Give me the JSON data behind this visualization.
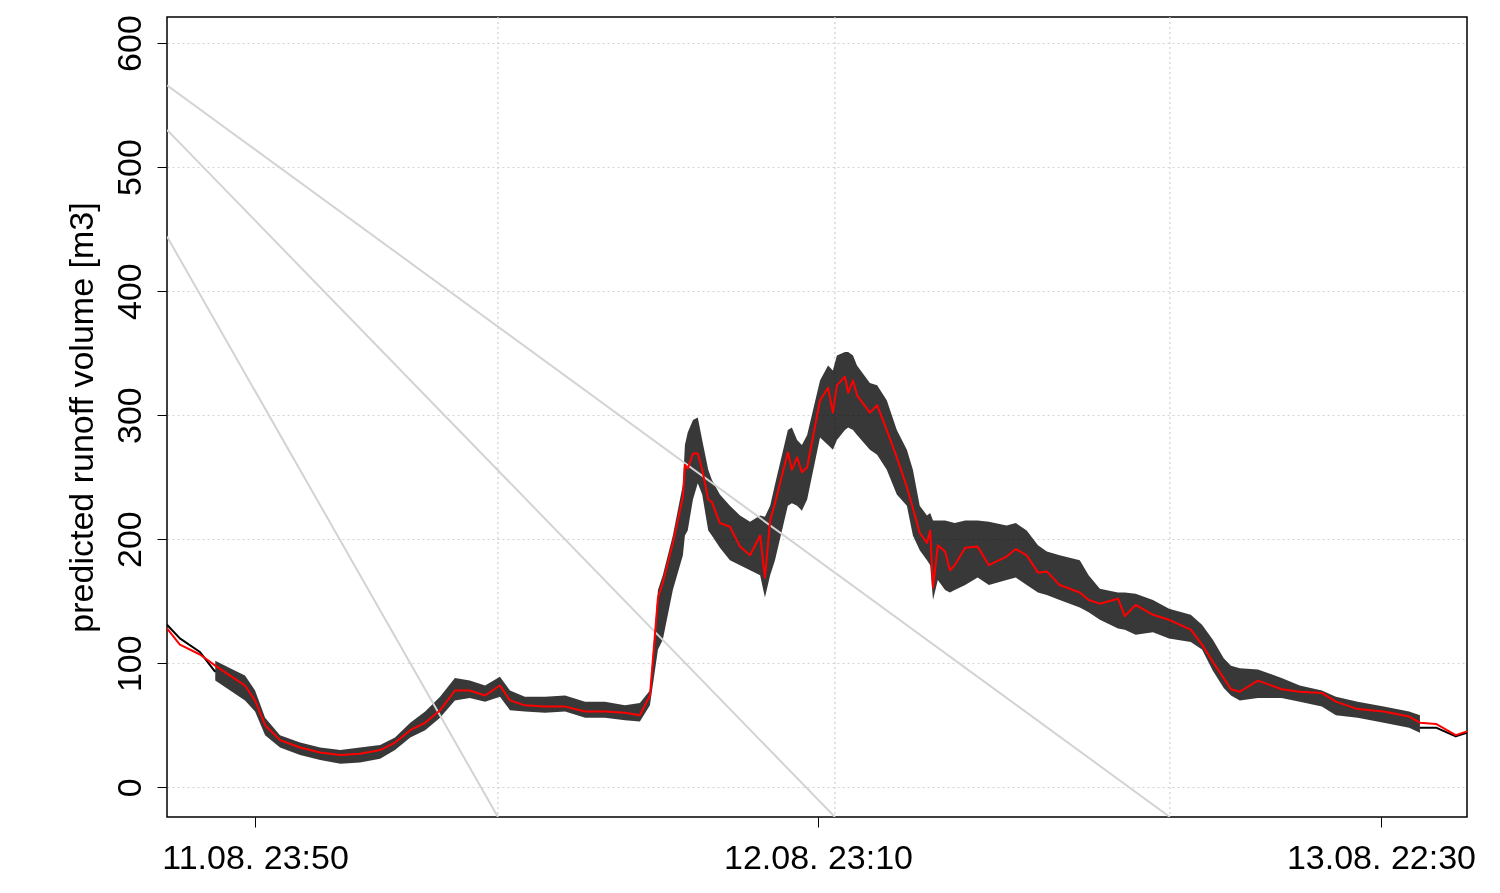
{
  "chart_data": {
    "type": "line",
    "ylabel": "predicted runoff volume [m3]",
    "x": [
      "--08-11T20:11",
      "--08-11T20:43",
      "--08-11T21:33",
      "--08-11T22:11",
      "--08-11T22:48",
      "--08-11T23:25",
      "--08-11T23:50",
      "--08-12T00:15",
      "--08-12T00:52",
      "--08-12T01:42",
      "--08-12T02:32",
      "--08-12T03:22",
      "--08-12T04:11",
      "--08-12T05:01",
      "--08-12T05:38",
      "--08-12T06:16",
      "--08-12T06:53",
      "--08-12T07:30",
      "--08-12T08:07",
      "--08-12T08:44",
      "--08-12T09:22",
      "--08-12T09:59",
      "--08-12T10:24",
      "--08-12T11:01",
      "--08-12T11:51",
      "--08-12T12:41",
      "--08-12T13:31",
      "--08-12T14:20",
      "--08-12T15:10",
      "--08-12T15:47",
      "--08-12T16:12",
      "--08-12T16:32",
      "--08-12T16:44",
      "--08-12T17:09",
      "--08-12T17:34",
      "--08-12T17:39",
      "--08-12T17:46",
      "--08-12T17:59",
      "--08-12T18:11",
      "--08-12T18:22",
      "--08-12T18:37",
      "--08-12T18:46",
      "--08-12T19:06",
      "--08-12T19:31",
      "--08-12T19:56",
      "--08-12T20:21",
      "--08-12T20:46",
      "--08-12T20:58",
      "--08-12T21:11",
      "--08-12T21:23",
      "--08-12T21:55",
      "--08-12T22:05",
      "--08-12T22:18",
      "--08-12T22:30",
      "--08-12T22:43",
      "--08-12T23:15",
      "--08-12T23:35",
      "--08-12T23:47",
      "--08-12T23:57",
      "--08-13T00:17",
      "--08-13T00:25",
      "--08-13T00:37",
      "--08-13T00:47",
      "--08-13T01:19",
      "--08-13T01:37",
      "--08-13T02:01",
      "--08-13T02:26",
      "--08-13T02:51",
      "--08-13T03:06",
      "--08-13T03:23",
      "--08-13T03:41",
      "--08-13T03:49",
      "--08-13T03:56",
      "--08-13T04:08",
      "--08-13T04:26",
      "--08-13T04:38",
      "--08-13T04:50",
      "--08-13T05:16",
      "--08-13T05:47",
      "--08-13T06:15",
      "--08-13T06:59",
      "--08-13T07:22",
      "--08-13T07:49",
      "--08-13T08:17",
      "--08-13T08:39",
      "--08-13T09:11",
      "--08-13T10:01",
      "--08-13T10:23",
      "--08-13T10:51",
      "--08-13T11:36",
      "--08-13T11:53",
      "--08-13T12:20",
      "--08-13T13:03",
      "--08-13T13:43",
      "--08-13T14:37",
      "--08-13T15:05",
      "--08-13T15:32",
      "--08-13T15:59",
      "--08-13T16:17",
      "--08-13T16:39",
      "--08-13T17:24",
      "--08-13T18:23",
      "--08-13T19:08",
      "--08-13T20:03",
      "--08-13T20:38",
      "--08-13T21:32",
      "--08-13T22:37",
      "--08-13T23:40",
      "--08-14T00:07",
      "--08-14T00:47",
      "--08-14T01:36",
      "--08-14T02:04"
    ],
    "series": [
      {
        "type": "line",
        "color": "#d3d3d3",
        "x": [
          "--08-11T20:11",
          "--08-13T13:45"
        ],
        "values": [
          566,
          -24
        ]
      },
      {
        "type": "line",
        "color": "#d3d3d3",
        "x": [
          "--08-11T20:11",
          "--08-12T23:52"
        ],
        "values": [
          530,
          -24
        ]
      },
      {
        "type": "line",
        "color": "#d3d3d3",
        "x": [
          "--08-11T20:11",
          "--08-12T09:54"
        ],
        "values": [
          444,
          -24
        ]
      },
      {
        "type": "line",
        "color": "#000000",
        "values": [
          131,
          120,
          109,
          93,
          null,
          null,
          null,
          null,
          null,
          null,
          null,
          null,
          null,
          null,
          null,
          null,
          null,
          null,
          null,
          null,
          null,
          null,
          null,
          null,
          null,
          null,
          null,
          null,
          null,
          null,
          null,
          null,
          null,
          null,
          null,
          null,
          null,
          null,
          null,
          null,
          null,
          null,
          null,
          null,
          null,
          null,
          null,
          null,
          null,
          null,
          null,
          null,
          null,
          null,
          null,
          null,
          null,
          null,
          null,
          null,
          null,
          null,
          null,
          null,
          null,
          null,
          null,
          null,
          null,
          null,
          null,
          null,
          null,
          null,
          null,
          null,
          null,
          null,
          null,
          null,
          null,
          null,
          null,
          null,
          null,
          null,
          null,
          null,
          null,
          null,
          null,
          null,
          null,
          null,
          null,
          null,
          null,
          null,
          null,
          null,
          null,
          null,
          null,
          null,
          null,
          null,
          null,
          null,
          48,
          48,
          41,
          44
        ],
        "lower": [
          null,
          null,
          null,
          86,
          78,
          70,
          61,
          42,
          32,
          26,
          22,
          19,
          20,
          23,
          30,
          40,
          46,
          56,
          70,
          72,
          69,
          73,
          62,
          61,
          60,
          61,
          56,
          56,
          54,
          53,
          66,
          111,
          119,
          159,
          187,
          203,
          207,
          232,
          245,
          236,
          207,
          203,
          193,
          183,
          179,
          175,
          171,
          153,
          171,
          183,
          227,
          229,
          227,
          223,
          232,
          282,
          276,
          272,
          280,
          288,
          290,
          288,
          284,
          272,
          268,
          256,
          236,
          227,
          203,
          191,
          183,
          179,
          151,
          167,
          159,
          157,
          159,
          163,
          169,
          163,
          167,
          169,
          163,
          157,
          155,
          151,
          145,
          141,
          135,
          128,
          127,
          123,
          125,
          120,
          117,
          111,
          94,
          80,
          74,
          70,
          72,
          72,
          69,
          65,
          58,
          56,
          52,
          48,
          44,
          null,
          null,
          null
        ],
        "upper": [
          null,
          null,
          null,
          102,
          96,
          90,
          78,
          56,
          42,
          36,
          32,
          30,
          32,
          34,
          40,
          52,
          61,
          73,
          88,
          86,
          82,
          89,
          78,
          73,
          73,
          74,
          69,
          69,
          66,
          68,
          78,
          159,
          171,
          203,
          244,
          276,
          286,
          296,
          298,
          280,
          256,
          248,
          236,
          227,
          219,
          214,
          219,
          218,
          227,
          244,
          288,
          290,
          280,
          276,
          284,
          328,
          340,
          336,
          348,
          351,
          351,
          348,
          340,
          326,
          324,
          312,
          288,
          272,
          256,
          227,
          219,
          221,
          215,
          215,
          215,
          214,
          213,
          215,
          215,
          214,
          211,
          213,
          207,
          195,
          190,
          187,
          183,
          171,
          160,
          157,
          157,
          156,
          151,
          144,
          139,
          131,
          119,
          104,
          98,
          96,
          95,
          88,
          82,
          78,
          73,
          69,
          65,
          61,
          58,
          null,
          null,
          null
        ]
      },
      {
        "type": "line",
        "color": "#ff0000",
        "values": [
          128,
          115,
          107,
          98,
          90,
          82,
          70,
          50,
          38,
          32,
          28,
          26,
          27,
          30,
          36,
          46,
          52,
          62,
          78,
          78,
          74,
          82,
          70,
          66,
          65,
          65,
          61,
          61,
          60,
          58,
          74,
          153,
          165,
          197,
          234,
          260,
          257,
          269,
          269,
          256,
          232,
          230,
          213,
          210,
          194,
          187,
          203,
          169,
          215,
          229,
          270,
          256,
          266,
          254,
          258,
          312,
          322,
          302,
          324,
          331,
          318,
          328,
          316,
          302,
          308,
          288,
          266,
          242,
          225,
          205,
          197,
          207,
          161,
          195,
          190,
          175,
          179,
          193,
          194,
          179,
          186,
          192,
          187,
          173,
          174,
          163,
          157,
          151,
          148,
          152,
          138,
          147,
          139,
          135,
          127,
          115,
          101,
          88,
          79,
          77,
          86,
          79,
          77,
          76,
          69,
          63,
          61,
          57,
          52,
          51,
          42,
          45
        ]
      }
    ],
    "xlim": [
      "--08-11T20:11",
      "--08-14T02:04"
    ],
    "ylim": [
      -24,
      621
    ],
    "xticks": [
      {
        "value": "--08-11T23:50",
        "label": "11.08. 23:50"
      },
      {
        "value": "--08-12T23:10",
        "label": "12.08. 23:10"
      },
      {
        "value": "--08-13T22:30",
        "label": "13.08. 22:30"
      }
    ],
    "yticks": [
      0,
      100,
      200,
      300,
      400,
      500,
      600
    ],
    "grid": "y",
    "ref_lines": [
      {
        "axis": "x",
        "value": "--08-12T09:54",
        "color": "#d3d3d3",
        "line_style": "dotted"
      },
      {
        "axis": "x",
        "value": "--08-12T23:52",
        "color": "#d3d3d3",
        "line_style": "dotted"
      },
      {
        "axis": "x",
        "value": "--08-13T13:45",
        "color": "#d3d3d3",
        "line_style": "dotted"
      }
    ],
    "marker": "none",
    "line_style": "solid"
  }
}
